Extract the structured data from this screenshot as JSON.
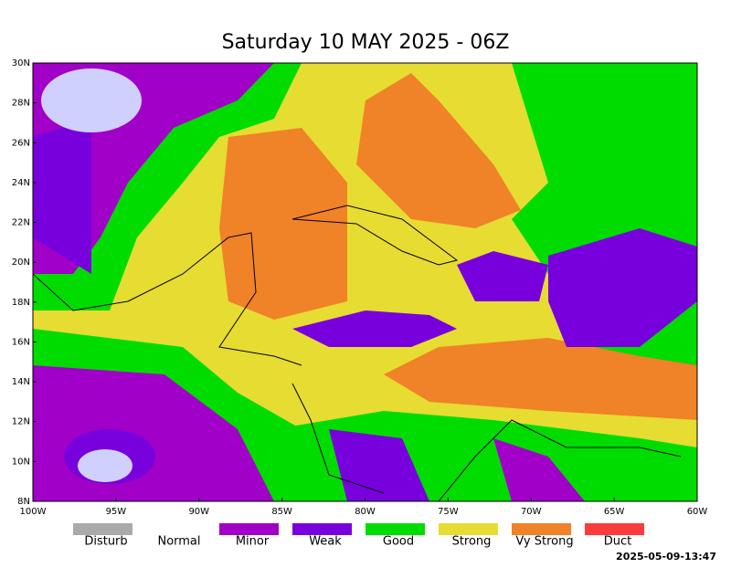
{
  "title": "Saturday 10 MAY 2025 - 06Z",
  "map": {
    "lon_ticks": [
      {
        "value": -100,
        "label": "100W"
      },
      {
        "value": -95,
        "label": "95W"
      },
      {
        "value": -90,
        "label": "90W"
      },
      {
        "value": -85,
        "label": "85W"
      },
      {
        "value": -80,
        "label": "80W"
      },
      {
        "value": -75,
        "label": "75W"
      },
      {
        "value": -70,
        "label": "70W"
      },
      {
        "value": -65,
        "label": "65W"
      },
      {
        "value": -60,
        "label": "60W"
      }
    ],
    "lat_ticks": [
      {
        "value": 8,
        "label": "8N"
      },
      {
        "value": 10,
        "label": "10N"
      },
      {
        "value": 12,
        "label": "12N"
      },
      {
        "value": 14,
        "label": "14N"
      },
      {
        "value": 16,
        "label": "16N"
      },
      {
        "value": 18,
        "label": "18N"
      },
      {
        "value": 20,
        "label": "20N"
      },
      {
        "value": 22,
        "label": "22N"
      },
      {
        "value": 24,
        "label": "24N"
      },
      {
        "value": 26,
        "label": "26N"
      },
      {
        "value": 28,
        "label": "28N"
      },
      {
        "value": 30,
        "label": "30N"
      }
    ]
  },
  "legend": [
    {
      "label": "Disturb",
      "color": "#aaaaaa"
    },
    {
      "label": "Normal"
    },
    {
      "label": "Minor",
      "color": "#a000c8"
    },
    {
      "label": "Weak",
      "color": "#7800dc"
    },
    {
      "label": "Good",
      "color": "#00dc00"
    },
    {
      "label": "Strong",
      "color": "#e6dc32"
    },
    {
      "label": "Vy Strong",
      "color": "#f08228"
    },
    {
      "label": "Duct",
      "color": "#fa3c3c"
    }
  ],
  "timestamp": "2025-05-09-13:47"
}
